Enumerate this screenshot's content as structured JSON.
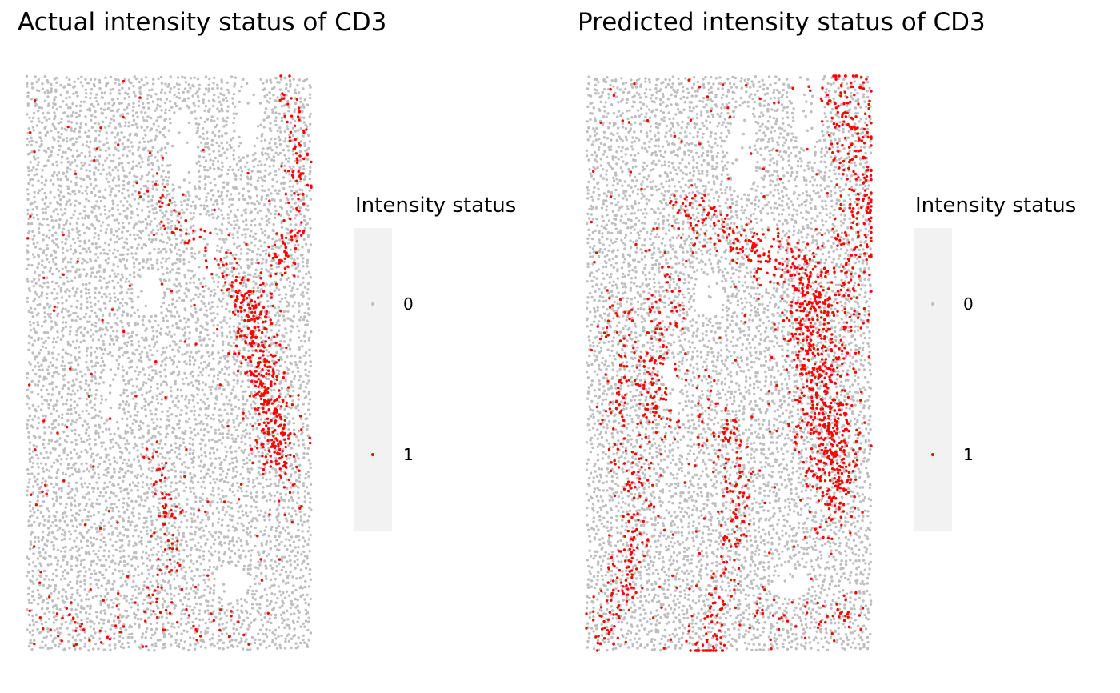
{
  "chart_data": [
    {
      "type": "scatter",
      "title": "Actual intensity status of CD3",
      "legend": {
        "title": "Intensity status",
        "entries": [
          {
            "label": "0",
            "color": "#bebebe"
          },
          {
            "label": "1",
            "color": "#ff0000"
          }
        ],
        "placement": "right"
      },
      "axes": "hidden",
      "grid": false,
      "xlim": [
        0,
        1
      ],
      "ylim": [
        0,
        1
      ],
      "series": [
        {
          "name": "0",
          "color": "#bebebe",
          "values": "spatial cell positions (approx. 7000 cells)"
        },
        {
          "name": "1",
          "color": "#ff0000",
          "values": "spatial cell positions (approx. 900 cells)"
        }
      ]
    },
    {
      "type": "scatter",
      "title": "Predicted intensity status of CD3",
      "legend": {
        "title": "Intensity status",
        "entries": [
          {
            "label": "0",
            "color": "#bebebe"
          },
          {
            "label": "1",
            "color": "#ff0000"
          }
        ],
        "placement": "right"
      },
      "axes": "hidden",
      "grid": false,
      "xlim": [
        0,
        1
      ],
      "ylim": [
        0,
        1
      ],
      "series": [
        {
          "name": "0",
          "color": "#bebebe",
          "values": "spatial cell positions (approx. 6200 cells)"
        },
        {
          "name": "1",
          "color": "#ff0000",
          "values": "spatial cell positions (approx. 1700 cells)"
        }
      ]
    }
  ]
}
